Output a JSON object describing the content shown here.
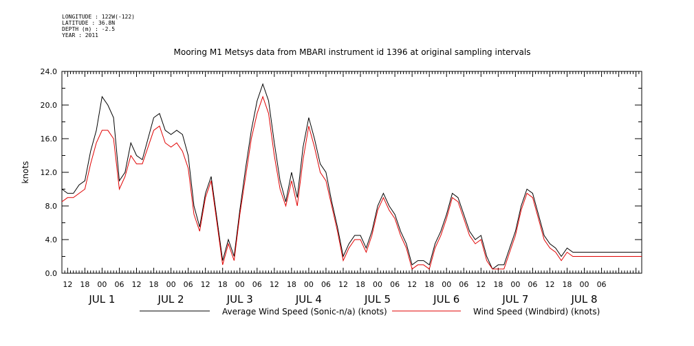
{
  "meta": {
    "longitude": "LONGITUDE : 122W(-122)",
    "latitude": "LATITUDE : 36.8N",
    "depth": "DEPTH (m) : -2.5",
    "year": "YEAR : 2011"
  },
  "chart_data": {
    "type": "line",
    "title": "Mooring M1 Metsys data from MBARI instrument id 1396 at original sampling intervals",
    "ylabel": "knots",
    "xlabel": "",
    "ylim": [
      0,
      24
    ],
    "yticks": [
      "0.0",
      "4.0",
      "8.0",
      "12.0",
      "16.0",
      "20.0",
      "24.0"
    ],
    "xlim_hours": [
      10,
      212
    ],
    "x_tick_labels": [
      "12",
      "18",
      "00",
      "06",
      "12",
      "18",
      "00",
      "06",
      "12",
      "18",
      "00",
      "06",
      "12",
      "18",
      "00",
      "06",
      "12",
      "18",
      "00",
      "06",
      "12",
      "18",
      "00",
      "06",
      "12",
      "18",
      "00",
      "06",
      "12",
      "18",
      "00",
      "06"
    ],
    "date_labels": [
      "JUL 1",
      "JUL 2",
      "JUL 3",
      "JUL 4",
      "JUL 5",
      "JUL 6",
      "JUL 7",
      "JUL 8"
    ],
    "series": [
      {
        "name": "Average Wind Speed (Sonic-n/a) (knots)",
        "color": "#000000",
        "x": [
          10,
          12,
          14,
          16,
          18,
          20,
          22,
          24,
          26,
          28,
          30,
          32,
          34,
          36,
          38,
          40,
          42,
          44,
          46,
          48,
          50,
          52,
          54,
          56,
          58,
          60,
          62,
          64,
          66,
          68,
          70,
          72,
          74,
          76,
          78,
          80,
          82,
          84,
          86,
          88,
          90,
          92,
          94,
          96,
          98,
          100,
          102,
          104,
          106,
          108,
          110,
          112,
          114,
          116,
          118,
          120,
          122,
          124,
          126,
          128,
          130,
          132,
          134,
          136,
          138,
          140,
          142,
          144,
          146,
          148,
          150,
          152,
          154,
          156,
          158,
          160,
          162,
          164,
          166,
          168,
          170,
          172,
          174,
          176,
          178,
          180,
          182,
          184,
          186,
          188,
          190,
          192,
          194,
          196,
          198,
          200,
          202,
          204,
          206,
          208,
          210,
          212
        ],
        "values": [
          10.0,
          9.5,
          9.5,
          10.5,
          11.0,
          14.5,
          17.0,
          21.0,
          20.0,
          18.5,
          11.0,
          12.0,
          15.5,
          14.0,
          13.5,
          16.0,
          18.5,
          19.0,
          17.0,
          16.5,
          17.0,
          16.5,
          14.0,
          8.0,
          5.5,
          9.5,
          11.5,
          6.5,
          1.5,
          4.0,
          2.0,
          7.5,
          12.5,
          17.0,
          20.5,
          22.5,
          20.5,
          15.5,
          11.0,
          8.5,
          12.0,
          9.0,
          15.0,
          18.5,
          16.0,
          13.0,
          12.0,
          8.5,
          5.5,
          2.0,
          3.5,
          4.5,
          4.5,
          3.0,
          5.0,
          8.0,
          9.5,
          8.0,
          7.0,
          5.0,
          3.5,
          1.0,
          1.5,
          1.5,
          1.0,
          3.5,
          5.0,
          7.0,
          9.5,
          9.0,
          7.0,
          5.0,
          4.0,
          4.5,
          2.0,
          0.5,
          1.0,
          1.0,
          3.0,
          5.0,
          8.0,
          10.0,
          9.5,
          7.0,
          4.5,
          3.5,
          3.0,
          2.0,
          3.0,
          2.5,
          2.5,
          2.5,
          2.5,
          2.5,
          2.5,
          2.5,
          2.5,
          2.5,
          2.5,
          2.5,
          2.5,
          2.5
        ]
      },
      {
        "name": "Wind Speed (Windbird) (knots)",
        "color": "#e00000",
        "x": [
          10,
          12,
          14,
          16,
          18,
          20,
          22,
          24,
          26,
          28,
          30,
          32,
          34,
          36,
          38,
          40,
          42,
          44,
          46,
          48,
          50,
          52,
          54,
          56,
          58,
          60,
          62,
          64,
          66,
          68,
          70,
          72,
          74,
          76,
          78,
          80,
          82,
          84,
          86,
          88,
          90,
          92,
          94,
          96,
          98,
          100,
          102,
          104,
          106,
          108,
          110,
          112,
          114,
          116,
          118,
          120,
          122,
          124,
          126,
          128,
          130,
          132,
          134,
          136,
          138,
          140,
          142,
          144,
          146,
          148,
          150,
          152,
          154,
          156,
          158,
          160,
          162,
          164,
          166,
          168,
          170,
          172,
          174,
          176,
          178,
          180,
          182,
          184,
          186,
          188,
          190,
          192,
          194,
          196,
          198,
          200,
          202,
          204,
          206,
          208,
          210,
          212
        ],
        "values": [
          8.5,
          9.0,
          9.0,
          9.5,
          10.0,
          13.0,
          15.5,
          17.0,
          17.0,
          16.0,
          10.0,
          11.5,
          14.0,
          13.0,
          13.0,
          15.0,
          17.0,
          17.5,
          15.5,
          15.0,
          15.5,
          14.5,
          12.5,
          7.0,
          5.0,
          9.0,
          11.0,
          6.0,
          1.0,
          3.5,
          1.5,
          7.0,
          11.5,
          16.0,
          19.0,
          21.0,
          19.0,
          14.0,
          10.0,
          8.0,
          11.0,
          8.0,
          13.5,
          17.5,
          15.0,
          12.0,
          11.0,
          8.0,
          5.0,
          1.5,
          3.0,
          4.0,
          4.0,
          2.5,
          4.5,
          7.5,
          9.0,
          7.5,
          6.5,
          4.5,
          3.0,
          0.5,
          1.0,
          1.0,
          0.5,
          3.0,
          4.5,
          6.5,
          9.0,
          8.5,
          6.5,
          4.5,
          3.5,
          4.0,
          1.5,
          0.5,
          0.5,
          0.5,
          2.5,
          4.5,
          7.5,
          9.5,
          9.0,
          6.5,
          4.0,
          3.0,
          2.5,
          1.5,
          2.5,
          2.0,
          2.0,
          2.0,
          2.0,
          2.0,
          2.0,
          2.0,
          2.0,
          2.0,
          2.0,
          2.0,
          2.0,
          2.0
        ]
      }
    ],
    "legend_placement": "bottom"
  }
}
